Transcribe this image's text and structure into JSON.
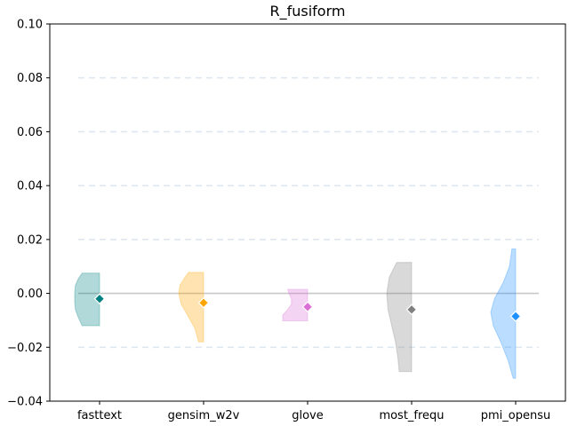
{
  "chart_data": {
    "type": "violin",
    "title": "R_fusiform",
    "xlabel": "",
    "ylabel": "",
    "ylim": [
      -0.04,
      0.1
    ],
    "y_ticks": [
      -0.04,
      -0.02,
      0.0,
      0.02,
      0.04,
      0.06,
      0.08,
      0.1
    ],
    "y_tick_labels": [
      "−0.04",
      "−0.02",
      "0.00",
      "0.02",
      "0.04",
      "0.06",
      "0.08",
      "0.10"
    ],
    "grid": "horizontal dashed",
    "reference_line": 0.0,
    "categories": [
      "fasttext",
      "gensim_w2v",
      "glove",
      "most_frequ",
      "pmi_opensu"
    ],
    "series": [
      {
        "category": "fasttext",
        "color": "#008080",
        "median": -0.002,
        "min": -0.012,
        "max": 0.0075,
        "profile": [
          [
            -0.012,
            0.7
          ],
          [
            -0.009,
            0.85
          ],
          [
            -0.006,
            0.97
          ],
          [
            -0.003,
            1.0
          ],
          [
            0.0,
            1.0
          ],
          [
            0.003,
            0.97
          ],
          [
            0.0055,
            0.85
          ],
          [
            0.0075,
            0.7
          ]
        ]
      },
      {
        "category": "gensim_w2v",
        "color": "#FFA500",
        "median": -0.0035,
        "min": -0.018,
        "max": 0.0078,
        "profile": [
          [
            -0.018,
            0.2
          ],
          [
            -0.013,
            0.35
          ],
          [
            -0.008,
            0.65
          ],
          [
            -0.004,
            0.9
          ],
          [
            0.0,
            1.0
          ],
          [
            0.003,
            0.95
          ],
          [
            0.006,
            0.75
          ],
          [
            0.0078,
            0.6
          ]
        ]
      },
      {
        "category": "glove",
        "color": "#DA70D6",
        "median": -0.005,
        "min": -0.0102,
        "max": 0.0015,
        "profile": [
          [
            -0.0102,
            1.0
          ],
          [
            -0.008,
            1.0
          ],
          [
            -0.006,
            0.8
          ],
          [
            -0.004,
            0.65
          ],
          [
            -0.002,
            0.65
          ],
          [
            0.0,
            0.75
          ],
          [
            0.0015,
            0.8
          ]
        ]
      },
      {
        "category": "most_frequ",
        "color": "#808080",
        "median": -0.006,
        "min": -0.029,
        "max": 0.0115,
        "profile": [
          [
            -0.029,
            0.5
          ],
          [
            -0.024,
            0.55
          ],
          [
            -0.018,
            0.65
          ],
          [
            -0.012,
            0.8
          ],
          [
            -0.006,
            0.95
          ],
          [
            0.0,
            1.0
          ],
          [
            0.006,
            0.9
          ],
          [
            0.0115,
            0.6
          ]
        ]
      },
      {
        "category": "pmi_opensu",
        "color": "#1E90FF",
        "median": -0.0085,
        "min": -0.0315,
        "max": 0.0165,
        "profile": [
          [
            -0.0315,
            0.1
          ],
          [
            -0.025,
            0.3
          ],
          [
            -0.018,
            0.6
          ],
          [
            -0.012,
            0.9
          ],
          [
            -0.007,
            1.0
          ],
          [
            -0.002,
            0.85
          ],
          [
            0.004,
            0.5
          ],
          [
            0.01,
            0.25
          ],
          [
            0.0165,
            0.15
          ]
        ]
      }
    ]
  }
}
